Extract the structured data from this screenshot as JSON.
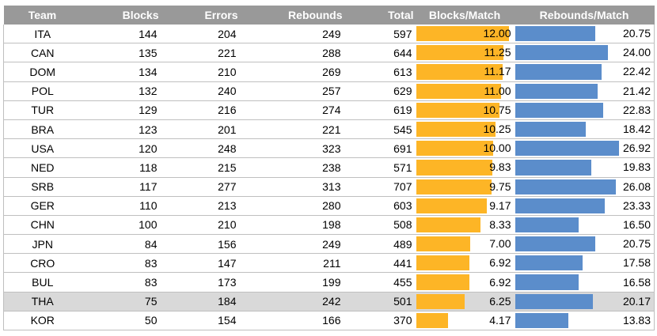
{
  "chart_data": {
    "type": "table",
    "columns": [
      "Team",
      "Blocks",
      "Errors",
      "Rebounds",
      "Total",
      "Blocks/Match",
      "Rebounds/Match"
    ],
    "bar_columns": [
      "Blocks/Match",
      "Rebounds/Match"
    ],
    "highlighted_team": "THA",
    "rows": [
      {
        "team": "ITA",
        "blocks": "144",
        "errors": "204",
        "rebounds": "249",
        "total": "597",
        "blocks_per_match": "12.00",
        "rebounds_per_match": "20.75"
      },
      {
        "team": "CAN",
        "blocks": "135",
        "errors": "221",
        "rebounds": "288",
        "total": "644",
        "blocks_per_match": "11.25",
        "rebounds_per_match": "24.00"
      },
      {
        "team": "DOM",
        "blocks": "134",
        "errors": "210",
        "rebounds": "269",
        "total": "613",
        "blocks_per_match": "11.17",
        "rebounds_per_match": "22.42"
      },
      {
        "team": "POL",
        "blocks": "132",
        "errors": "240",
        "rebounds": "257",
        "total": "629",
        "blocks_per_match": "11.00",
        "rebounds_per_match": "21.42"
      },
      {
        "team": "TUR",
        "blocks": "129",
        "errors": "216",
        "rebounds": "274",
        "total": "619",
        "blocks_per_match": "10.75",
        "rebounds_per_match": "22.83"
      },
      {
        "team": "BRA",
        "blocks": "123",
        "errors": "201",
        "rebounds": "221",
        "total": "545",
        "blocks_per_match": "10.25",
        "rebounds_per_match": "18.42"
      },
      {
        "team": "USA",
        "blocks": "120",
        "errors": "248",
        "rebounds": "323",
        "total": "691",
        "blocks_per_match": "10.00",
        "rebounds_per_match": "26.92"
      },
      {
        "team": "NED",
        "blocks": "118",
        "errors": "215",
        "rebounds": "238",
        "total": "571",
        "blocks_per_match": "9.83",
        "rebounds_per_match": "19.83"
      },
      {
        "team": "SRB",
        "blocks": "117",
        "errors": "277",
        "rebounds": "313",
        "total": "707",
        "blocks_per_match": "9.75",
        "rebounds_per_match": "26.08"
      },
      {
        "team": "GER",
        "blocks": "110",
        "errors": "213",
        "rebounds": "280",
        "total": "603",
        "blocks_per_match": "9.17",
        "rebounds_per_match": "23.33"
      },
      {
        "team": "CHN",
        "blocks": "100",
        "errors": "210",
        "rebounds": "198",
        "total": "508",
        "blocks_per_match": "8.33",
        "rebounds_per_match": "16.50"
      },
      {
        "team": "JPN",
        "blocks": "84",
        "errors": "156",
        "rebounds": "249",
        "total": "489",
        "blocks_per_match": "7.00",
        "rebounds_per_match": "20.75"
      },
      {
        "team": "CRO",
        "blocks": "83",
        "errors": "147",
        "rebounds": "211",
        "total": "441",
        "blocks_per_match": "6.92",
        "rebounds_per_match": "17.58"
      },
      {
        "team": "BUL",
        "blocks": "83",
        "errors": "173",
        "rebounds": "199",
        "total": "455",
        "blocks_per_match": "6.92",
        "rebounds_per_match": "16.58"
      },
      {
        "team": "THA",
        "blocks": "75",
        "errors": "184",
        "rebounds": "242",
        "total": "501",
        "blocks_per_match": "6.25",
        "rebounds_per_match": "20.17"
      },
      {
        "team": "KOR",
        "blocks": "50",
        "errors": "154",
        "rebounds": "166",
        "total": "370",
        "blocks_per_match": "4.17",
        "rebounds_per_match": "13.83"
      }
    ]
  },
  "colors": {
    "header_bg": "#999999",
    "header_text": "#ffffff",
    "blocks_bar": "#fdb526",
    "rebounds_bar": "#5b8dcb",
    "highlight_row": "#d9d9d9",
    "grid_line": "#bfbfbf"
  }
}
